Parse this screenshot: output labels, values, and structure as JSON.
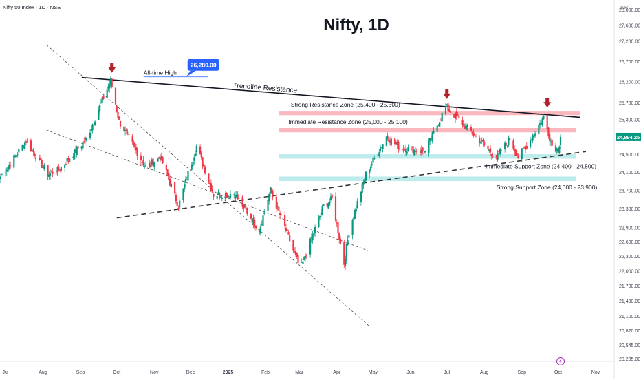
{
  "header": {
    "symbol": "Nifty 50 Index · 1D · NSE",
    "currency": "INR"
  },
  "chart_data": {
    "type": "candlestick",
    "title": "Nifty, 1D",
    "y_scale": "log",
    "ylim": [
      20200,
      28300
    ],
    "grid": false,
    "y_ticks": [
      28000,
      27600,
      27200,
      26700,
      26200,
      25700,
      25300,
      24900,
      24500,
      24100,
      23700,
      23300,
      22900,
      22600,
      22300,
      22000,
      21700,
      21400,
      21100,
      20820,
      20545,
      20285
    ],
    "y_tick_labels": [
      "28,000.00",
      "27,600.00",
      "27,200.00",
      "26,700.00",
      "26,200.00",
      "25,700.00",
      "25,300.00",
      "24,900.00",
      "24,500.00",
      "24,100.00",
      "23,700.00",
      "23,300.00",
      "22,900.00",
      "22,600.00",
      "22,300.00",
      "22,000.00",
      "21,700.00",
      "21,400.00",
      "21,100.00",
      "20,820.00",
      "20,545.00",
      "20,285.00"
    ],
    "x_ticks": [
      "2024-07-01",
      "2024-08-01",
      "2024-09-01",
      "2024-10-01",
      "2024-11-01",
      "2024-12-01",
      "2025-01-01",
      "2025-02-01",
      "2025-03-01",
      "2025-04-01",
      "2025-05-01",
      "2025-06-01",
      "2025-07-01",
      "2025-08-01",
      "2025-09-01",
      "2025-10-01",
      "2025-11-01"
    ],
    "x_tick_labels": [
      "Jul",
      "Aug",
      "Sep",
      "Oct",
      "Nov",
      "Dec",
      "2025",
      "Feb",
      "Mar",
      "Apr",
      "May",
      "Jun",
      "Jul",
      "Aug",
      "Sep",
      "Oct",
      "Nov"
    ],
    "last_price": {
      "label": "24,894.25",
      "value": 24894.25,
      "color": "#089981"
    },
    "anchors": [
      [
        "2024-06-27",
        24000
      ],
      [
        "2024-07-18",
        24800
      ],
      [
        "2024-08-05",
        24050
      ],
      [
        "2024-08-14",
        24150
      ],
      [
        "2024-09-06",
        24850
      ],
      [
        "2024-09-26",
        26220
      ],
      [
        "2024-10-03",
        25250
      ],
      [
        "2024-10-25",
        24200
      ],
      [
        "2024-11-06",
        24450
      ],
      [
        "2024-11-21",
        23350
      ],
      [
        "2024-12-06",
        24680
      ],
      [
        "2024-12-20",
        23600
      ],
      [
        "2025-01-06",
        23620
      ],
      [
        "2025-01-27",
        22850
      ],
      [
        "2025-02-05",
        23700
      ],
      [
        "2025-02-28",
        22150
      ],
      [
        "2025-03-03",
        22100
      ],
      [
        "2025-03-21",
        23350
      ],
      [
        "2025-03-28",
        23500
      ],
      [
        "2025-04-07",
        22150
      ],
      [
        "2025-04-11",
        22800
      ],
      [
        "2025-04-25",
        24050
      ],
      [
        "2025-05-12",
        24900
      ],
      [
        "2025-05-23",
        24650
      ],
      [
        "2025-06-13",
        24550
      ],
      [
        "2025-06-30",
        25600
      ],
      [
        "2025-07-25",
        24900
      ],
      [
        "2025-08-11",
        24420
      ],
      [
        "2025-08-22",
        24850
      ],
      [
        "2025-08-29",
        24430
      ],
      [
        "2025-09-05",
        24700
      ],
      [
        "2025-09-19",
        25350
      ],
      [
        "2025-09-26",
        24700
      ],
      [
        "2025-10-01",
        24600
      ],
      [
        "2025-10-03",
        24894.25
      ]
    ],
    "trendlines": [
      {
        "name": "Trendline Resistance",
        "style": "solid",
        "from": [
          "2024-09-02",
          26300
        ],
        "to": [
          "2025-10-19",
          25350
        ]
      },
      {
        "style": "dashed",
        "from": [
          "2024-10-01",
          23100
        ],
        "to": [
          "2025-10-24",
          24560
        ]
      },
      {
        "style": "dotted",
        "from": [
          "2024-08-04",
          27100
        ],
        "to": [
          "2025-04-28",
          20900
        ]
      },
      {
        "style": "dotted",
        "from": [
          "2024-08-04",
          25050
        ],
        "to": [
          "2025-04-28",
          22400
        ]
      }
    ],
    "zones": [
      {
        "label": "Strong Resistance Zone (25,400 - 25,500)",
        "low": 25400,
        "high": 25500,
        "from": "2025-02-12",
        "to": "2025-10-19",
        "color": "#f8a0a8"
      },
      {
        "label": "Immediate Resistance Zone (25,000 - 25,100)",
        "low": 25000,
        "high": 25100,
        "from": "2025-02-12",
        "to": "2025-10-16",
        "color": "#f8a0a8"
      },
      {
        "label": "Immediate Support Zone (24,400 - 24,500)",
        "low": 24400,
        "high": 24500,
        "from": "2025-02-12",
        "to": "2025-10-16",
        "color": "#a8e4e6"
      },
      {
        "label": "Strong Support Zone (24,000 - 23,900)",
        "low": 23900,
        "high": 24000,
        "from": "2025-02-12",
        "to": "2025-10-16",
        "color": "#a8e4e6"
      }
    ],
    "annotations": [
      {
        "text": "All-time High",
        "date": "2024-09-27",
        "value": 26280
      },
      {
        "text": "26,280.00",
        "date": "2024-09-27",
        "value": 26280
      }
    ],
    "peak_markers": [
      {
        "date": "2024-09-27",
        "value": 26280
      },
      {
        "date": "2025-07-01",
        "value": 25650
      },
      {
        "date": "2025-09-22",
        "value": 25450
      }
    ],
    "colors": {
      "up": "#089981",
      "down": "#f23645",
      "resistance": "#f8a0a8",
      "support": "#a8e4e6",
      "marker": "#b2222a",
      "callout": "#2962ff"
    }
  }
}
